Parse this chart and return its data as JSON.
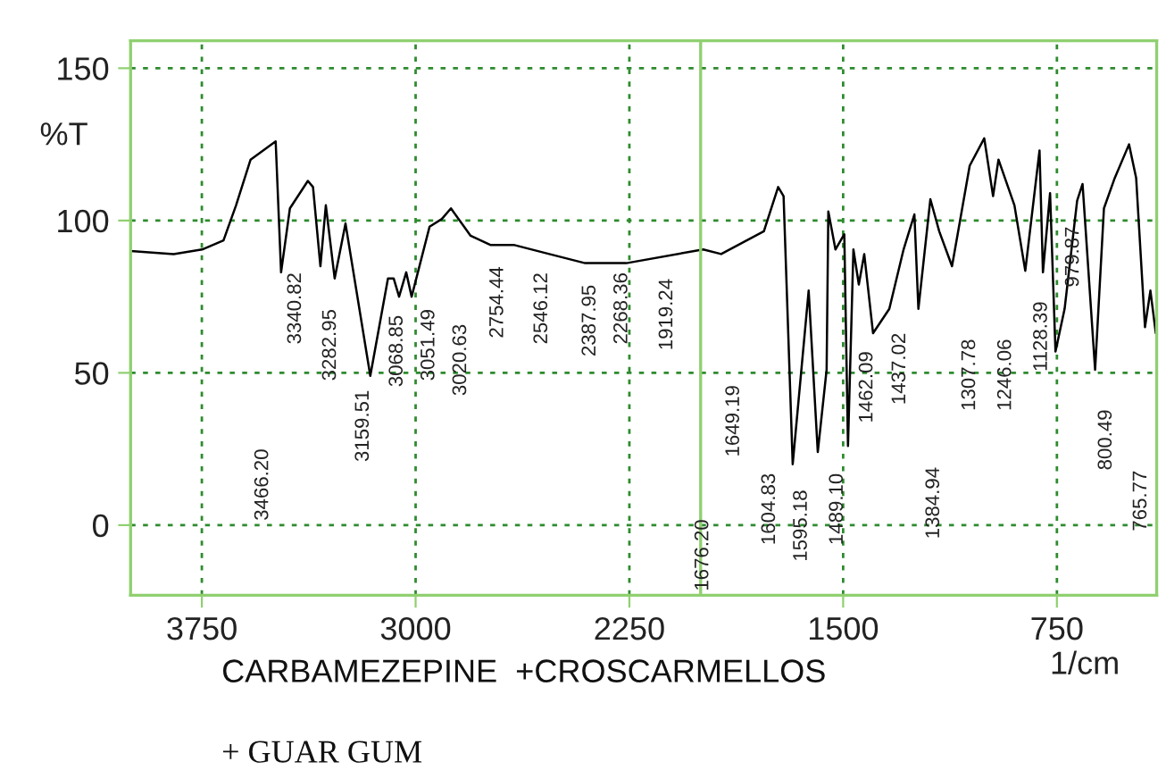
{
  "chart_data": {
    "type": "line",
    "xlabel": "1/cm",
    "ylabel": "%T",
    "xlim": [
      4000,
      400
    ],
    "xticks": [
      3750,
      3000,
      2250,
      1500,
      750
    ],
    "ylim": [
      -23,
      159
    ],
    "yticks": [
      0,
      50,
      100,
      150
    ],
    "grid": true,
    "legend": false,
    "marker": "none",
    "line_style": "solid",
    "ref_lines": [
      {
        "axis": "x",
        "value": 2000,
        "color": "#90d070",
        "line_style": "solid"
      }
    ],
    "x": [
      4000,
      3849,
      3749,
      3674,
      3630,
      3579,
      3491,
      3472,
      3441,
      3378,
      3360,
      3334,
      3315,
      3284,
      3246,
      3159,
      3097,
      3077,
      3058,
      3033,
      3014,
      2951,
      2908,
      2876,
      2807,
      2738,
      2656,
      2531,
      2405,
      2261,
      1991,
      1928,
      1778,
      1728,
      1709,
      1677,
      1621,
      1589,
      1558,
      1552,
      1527,
      1496,
      1483,
      1464,
      1445,
      1426,
      1395,
      1338,
      1288,
      1250,
      1236,
      1194,
      1163,
      1118,
      1056,
      1005,
      974,
      955,
      899,
      861,
      811,
      799,
      774,
      755,
      723,
      679,
      660,
      616,
      585,
      547,
      497,
      472,
      441,
      422,
      403
    ],
    "series": [
      {
        "color": "#000000",
        "values": [
          90,
          89,
          90.5,
          93.5,
          105,
          120,
          126,
          83,
          104,
          113,
          111,
          85,
          105,
          81,
          99,
          49,
          81,
          81,
          75,
          83,
          75,
          98,
          100.5,
          104,
          95,
          92,
          92,
          89,
          86,
          86,
          90.5,
          89,
          96.5,
          111,
          108,
          20,
          77,
          24,
          51,
          103,
          90.5,
          95.5,
          26,
          90.5,
          79,
          89,
          63,
          71,
          90.5,
          102,
          71,
          107,
          96.5,
          85,
          118,
          127,
          108,
          120,
          105,
          83.5,
          123,
          83,
          109,
          57,
          71,
          106.5,
          112,
          51,
          104,
          114,
          125,
          114,
          65,
          77,
          63
        ]
      }
    ],
    "annotations": [
      "3466.20",
      "3340.82",
      "3282.95",
      "3159.51",
      "3068.85",
      "3051.49",
      "3020.63",
      "2754.44",
      "2546.12",
      "2387.95",
      "2268.36",
      "1919.24",
      "1676.20",
      "1649.19",
      "1604.83",
      "1595.18",
      "1489.10",
      "1462.09",
      "1437.02",
      "1384.94",
      "1307.78",
      "1246.06",
      "1128.39",
      "979.87",
      "800.49",
      "765.77",
      "CARBAMEZEPINE  +CROSCARMELLOS",
      "+ GUAR GUM"
    ]
  }
}
